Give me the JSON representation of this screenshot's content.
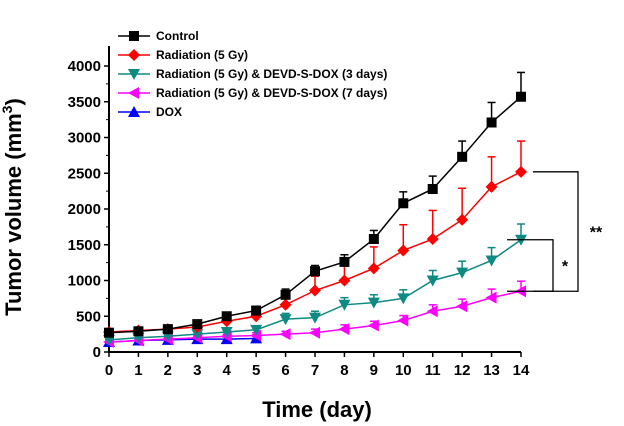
{
  "chart_data": {
    "type": "line",
    "xlabel": "Time (day)",
    "ylabel_main": "Tumor volume (mm",
    "ylabel_sup": "3",
    "ylabel_close": ")",
    "xlim": [
      0,
      14
    ],
    "ylim": [
      0,
      4000
    ],
    "x_ticks": [
      0,
      1,
      2,
      3,
      4,
      5,
      6,
      7,
      8,
      9,
      10,
      11,
      12,
      13,
      14
    ],
    "y_ticks": [
      0,
      500,
      1000,
      1500,
      2000,
      2500,
      3000,
      3500,
      4000
    ],
    "grid": false,
    "legend_position": "top-left",
    "series": [
      {
        "name": "Control",
        "color": "#000000",
        "marker": "square",
        "x": [
          0,
          1,
          2,
          3,
          4,
          5,
          6,
          7,
          8,
          9,
          10,
          11,
          12,
          13,
          14
        ],
        "values": [
          270,
          290,
          320,
          390,
          500,
          580,
          800,
          1130,
          1260,
          1580,
          2080,
          2280,
          2730,
          3210,
          3570
        ],
        "errors": [
          40,
          40,
          40,
          50,
          50,
          60,
          80,
          80,
          100,
          120,
          160,
          180,
          220,
          280,
          340
        ]
      },
      {
        "name": "Radiation (5 Gy)",
        "color": "#ff0000",
        "marker": "diamond",
        "x": [
          0,
          1,
          2,
          3,
          4,
          5,
          6,
          7,
          8,
          9,
          10,
          11,
          12,
          13,
          14
        ],
        "values": [
          280,
          300,
          320,
          350,
          430,
          500,
          660,
          860,
          1000,
          1170,
          1420,
          1580,
          1850,
          2310,
          2520
        ],
        "errors": [
          40,
          40,
          40,
          50,
          60,
          80,
          120,
          200,
          260,
          300,
          360,
          400,
          440,
          420,
          430
        ]
      },
      {
        "name": "Radiation (5 Gy) & DEVD-S-DOX (3 days)",
        "color": "#0e8a82",
        "marker": "triangle-down",
        "x": [
          0,
          1,
          2,
          3,
          4,
          5,
          6,
          7,
          8,
          9,
          10,
          11,
          12,
          13,
          14
        ],
        "values": [
          170,
          200,
          220,
          250,
          280,
          310,
          460,
          480,
          660,
          690,
          750,
          1000,
          1110,
          1280,
          1570
        ],
        "errors": [
          30,
          30,
          30,
          40,
          40,
          50,
          80,
          90,
          100,
          110,
          120,
          140,
          160,
          180,
          220
        ]
      },
      {
        "name": "Radiation (5 Gy) & DEVD-S-DOX (7 days)",
        "color": "#ff00ff",
        "marker": "triangle-left",
        "x": [
          0,
          1,
          2,
          3,
          4,
          5,
          6,
          7,
          8,
          9,
          10,
          11,
          12,
          13,
          14
        ],
        "values": [
          140,
          160,
          180,
          200,
          220,
          230,
          250,
          270,
          320,
          370,
          440,
          570,
          640,
          760,
          850
        ],
        "errors": [
          30,
          30,
          30,
          30,
          30,
          40,
          40,
          50,
          60,
          60,
          70,
          90,
          100,
          120,
          140
        ]
      },
      {
        "name": "DOX",
        "color": "#0000ff",
        "marker": "triangle-up",
        "x": [
          0,
          1,
          2,
          3,
          4,
          5
        ],
        "values": [
          140,
          160,
          170,
          180,
          180,
          190
        ],
        "errors": [
          30,
          30,
          30,
          30,
          30,
          30
        ]
      }
    ],
    "annotations": [
      {
        "label": "**",
        "from_value": 2520,
        "to_value": 850
      },
      {
        "label": "*",
        "from_value": 1570,
        "to_value": 850
      }
    ]
  }
}
